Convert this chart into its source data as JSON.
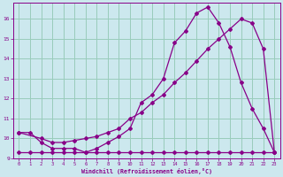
{
  "xlabel": "Windchill (Refroidissement éolien,°C)",
  "bg_color": "#cce8ee",
  "grid_color": "#99ccbb",
  "line_color": "#880088",
  "xlim_min": -0.5,
  "xlim_max": 23.5,
  "ylim_min": 9.0,
  "ylim_max": 16.8,
  "xticks": [
    0,
    1,
    2,
    3,
    4,
    5,
    6,
    7,
    8,
    9,
    10,
    11,
    12,
    13,
    14,
    15,
    16,
    17,
    18,
    19,
    20,
    21,
    22,
    23
  ],
  "yticks": [
    9,
    10,
    11,
    12,
    13,
    14,
    15,
    16
  ],
  "s1_x": [
    0,
    1,
    2,
    3,
    4,
    5,
    6,
    7,
    8,
    9,
    10,
    11,
    12,
    13,
    14,
    15,
    16,
    17,
    18,
    19,
    20,
    21,
    22,
    23
  ],
  "s1_y": [
    10.3,
    10.3,
    9.8,
    9.5,
    9.5,
    9.5,
    9.3,
    9.5,
    9.8,
    10.1,
    10.5,
    11.8,
    12.2,
    13.0,
    14.8,
    15.4,
    16.3,
    16.6,
    15.8,
    14.6,
    12.8,
    11.5,
    10.5,
    9.3
  ],
  "s2_x": [
    0,
    2,
    3,
    4,
    5,
    6,
    7,
    8,
    9,
    10,
    11,
    12,
    13,
    14,
    15,
    16,
    17,
    18,
    19,
    20,
    21,
    22,
    23
  ],
  "s2_y": [
    10.3,
    10.0,
    9.8,
    9.8,
    9.9,
    10.0,
    10.1,
    10.3,
    10.5,
    11.0,
    11.3,
    11.8,
    12.2,
    12.8,
    13.3,
    13.9,
    14.5,
    15.0,
    15.5,
    16.0,
    15.8,
    14.5,
    9.3
  ],
  "s3_x": [
    0,
    1,
    2,
    3,
    4,
    5,
    6,
    7,
    8,
    9,
    10,
    11,
    12,
    13,
    14,
    15,
    16,
    17,
    18,
    19,
    20,
    21,
    22,
    23
  ],
  "s3_y": [
    9.3,
    9.3,
    9.3,
    9.3,
    9.3,
    9.3,
    9.3,
    9.3,
    9.3,
    9.3,
    9.3,
    9.3,
    9.3,
    9.3,
    9.3,
    9.3,
    9.3,
    9.3,
    9.3,
    9.3,
    9.3,
    9.3,
    9.3,
    9.3
  ]
}
